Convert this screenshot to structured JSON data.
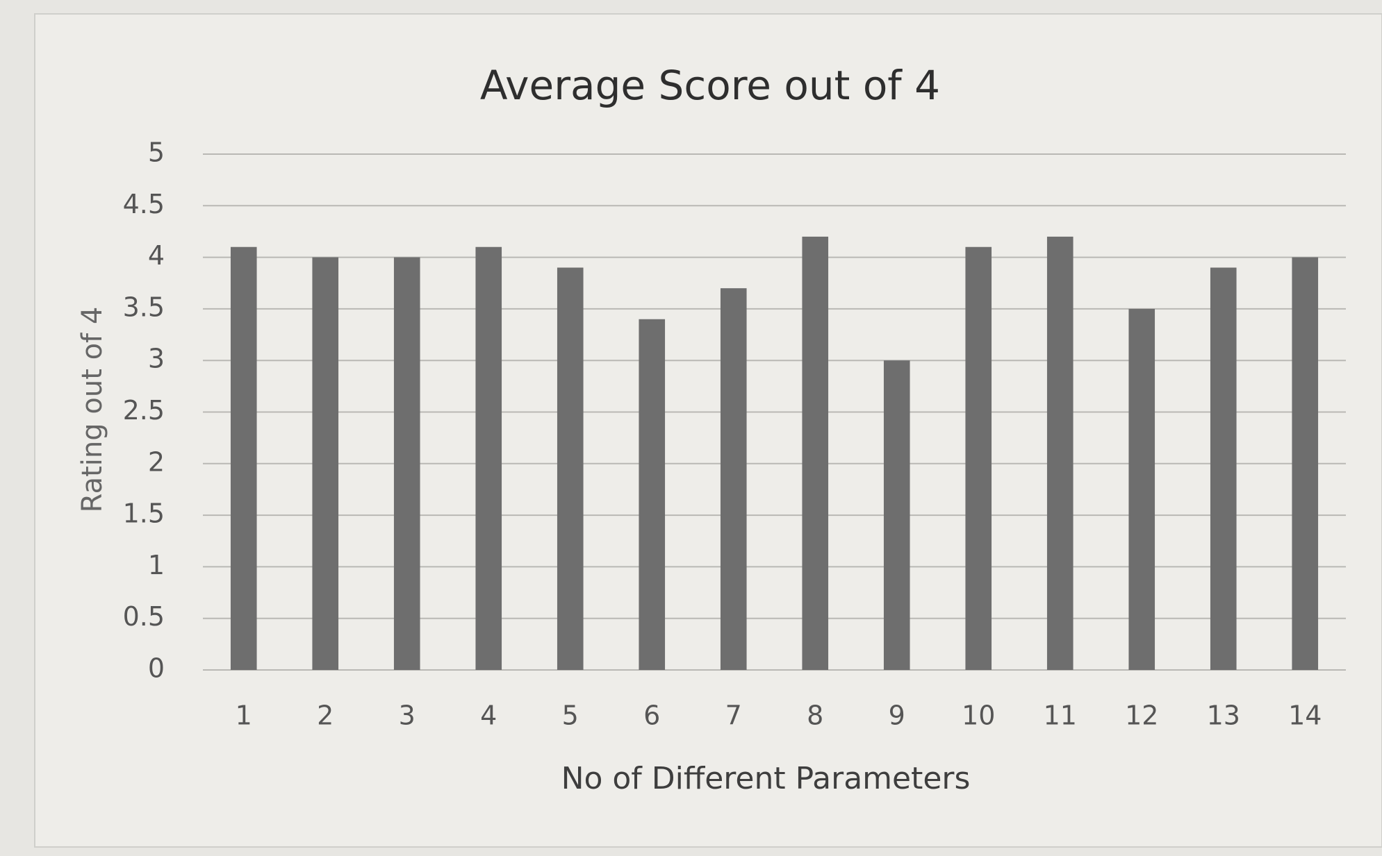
{
  "chart_data": {
    "type": "bar",
    "title": "Average Score out of 4",
    "x_label": "No of Different Parameters",
    "y_label": "Rating out of 4",
    "categories": [
      "1",
      "2",
      "3",
      "4",
      "5",
      "6",
      "7",
      "8",
      "9",
      "10",
      "11",
      "12",
      "13",
      "14"
    ],
    "values": [
      4.1,
      4.0,
      4.0,
      4.1,
      3.9,
      3.4,
      3.7,
      4.2,
      3.0,
      4.1,
      4.2,
      3.5,
      3.9,
      4.0
    ],
    "color": "#6e6e6e",
    "ylim": [
      0,
      5
    ],
    "yticks": [
      0,
      0.5,
      1,
      1.5,
      2,
      2.5,
      3,
      3.5,
      4,
      4.5,
      5
    ],
    "grid": true
  }
}
